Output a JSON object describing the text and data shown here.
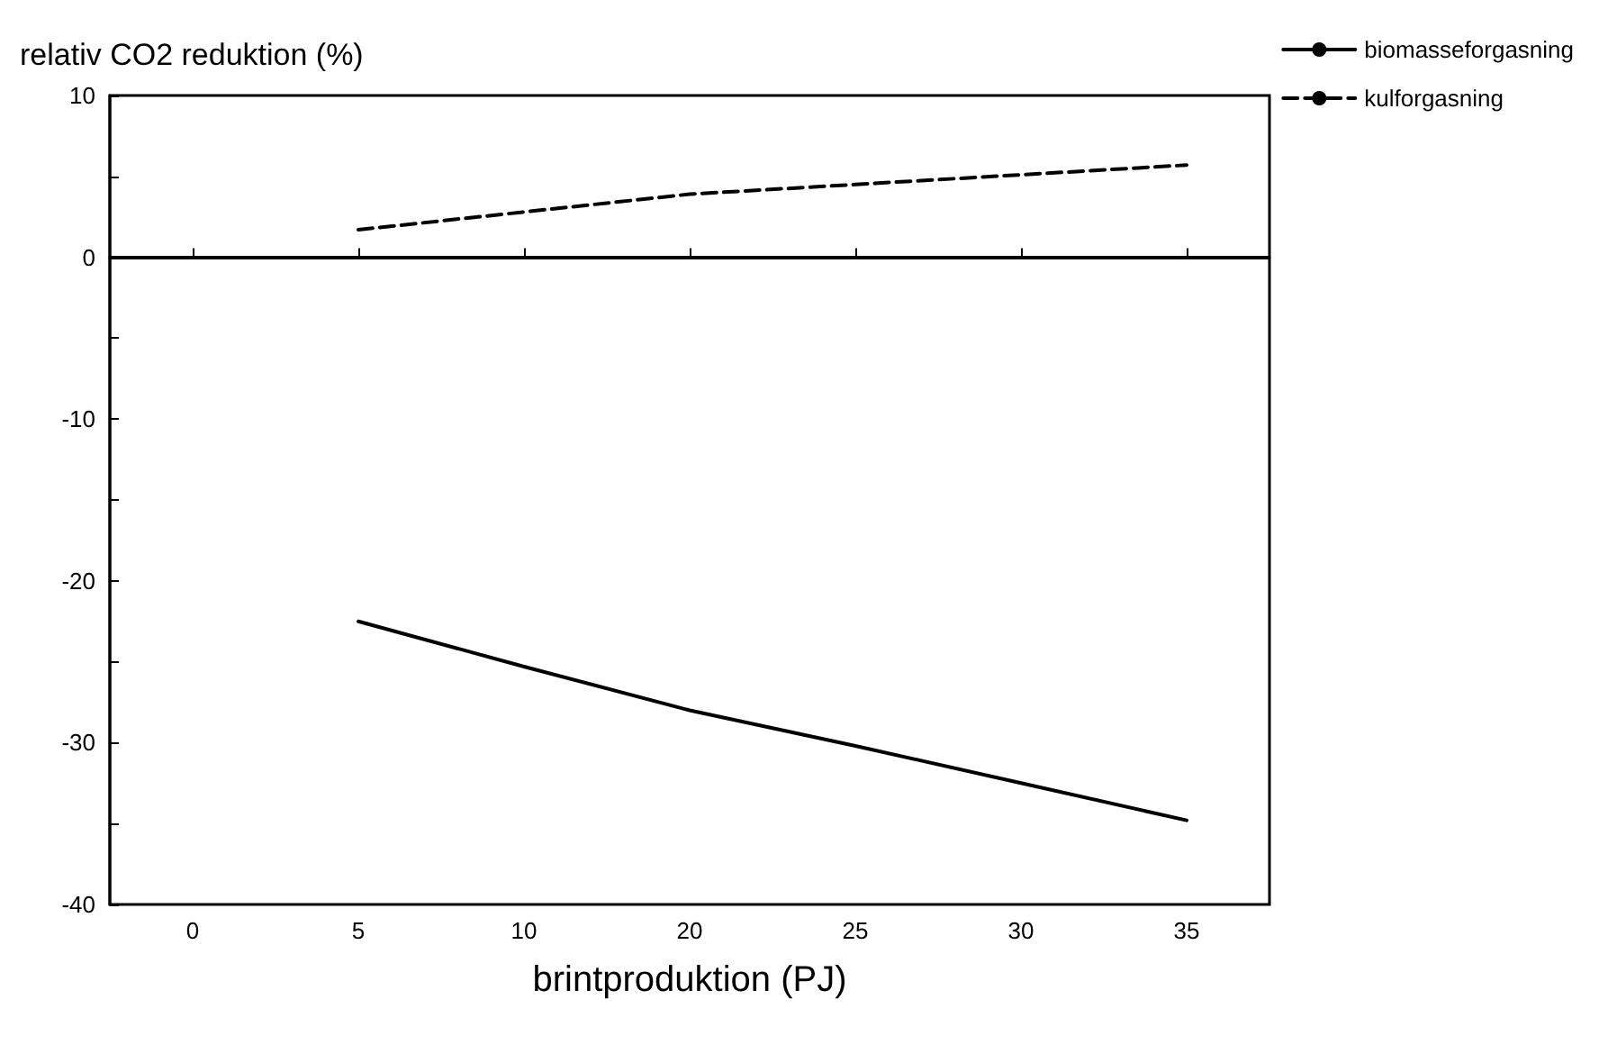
{
  "chart_data": {
    "type": "line",
    "ylabel": "relativ CO2 reduktion (%)",
    "xlabel": "brintproduktion (PJ)",
    "categories": [
      "0",
      "5",
      "10",
      "20",
      "25",
      "30",
      "35"
    ],
    "series": [
      {
        "name": "biomasseforgasning",
        "color": "#000000",
        "line_style": "solid",
        "values": [
          null,
          -22.5,
          -25.3,
          -28,
          -30.2,
          -32.5,
          -34.8
        ]
      },
      {
        "name": "kulforgasning",
        "color": "#000000",
        "line_style": "dashed",
        "values": [
          null,
          1.7,
          2.8,
          3.9,
          4.5,
          5.1,
          5.7
        ]
      }
    ],
    "ylim": [
      -40,
      10
    ],
    "yticks": [
      -40,
      {
        "value": -35,
        "label": null
      },
      -30,
      {
        "value": -25,
        "label": null
      },
      -20,
      {
        "value": -15,
        "label": null
      },
      -10,
      {
        "value": -5,
        "label": null
      },
      0,
      {
        "value": 5,
        "label": null
      },
      10
    ],
    "ref_lines": [
      {
        "axis": "y",
        "value": 0,
        "color": "#000000",
        "line_style": "solid"
      }
    ],
    "legend": "top right",
    "grid": false,
    "marker": "none"
  }
}
